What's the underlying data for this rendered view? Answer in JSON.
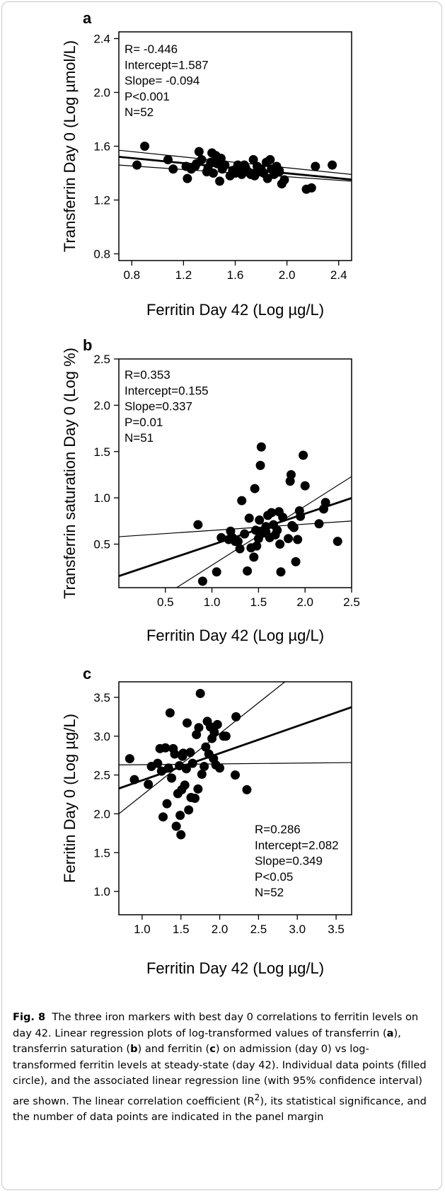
{
  "caption": {
    "label": "Fig. 8",
    "text_1": "The three iron markers with best day 0 correlations to ferritin levels on day 42. Linear regression plots of log-transformed values of transferrin (",
    "ref_a": "a",
    "text_2": "), transferrin saturation (",
    "ref_b": "b",
    "text_3": ") and ferritin (",
    "ref_c": "c",
    "text_4": ") on admission (day 0) vs log-transformed ferritin levels at steady-state (day 42). Individual data points (filled circle), and the associated linear regression line (with 95% confidence interval) are shown. The linear correlation coefficient (R",
    "sup": "2",
    "text_5": "), its statistical significance, and the number of data points are indicated in the panel margin"
  },
  "chart_data": [
    {
      "type": "scatter",
      "panel_label": "a",
      "xlabel": "Ferritin Day 42 (Log µg/L)",
      "ylabel": "Transferrin Day 0 (Log µmol/L)",
      "xlim": [
        0.7,
        2.5
      ],
      "ylim": [
        0.75,
        2.45
      ],
      "xticks": [
        0.8,
        1.2,
        1.6,
        2.0,
        2.4
      ],
      "xtick_labels": [
        "0.8",
        "1.2",
        "1.6",
        "2.0",
        "2.4"
      ],
      "yticks": [
        0.8,
        1.2,
        1.6,
        2.0,
        2.4
      ],
      "ytick_labels": [
        "0.8",
        "1.2",
        "1.6",
        "2.0",
        "2.4"
      ],
      "stats": [
        "R= -0.446",
        "Intercept=1.587",
        "Slope= -0.094",
        "P<0.001",
        "N=52"
      ],
      "stats_position": "top-left",
      "regression": {
        "intercept": 1.587,
        "slope": -0.094
      },
      "ci_lower": [
        [
          0.7,
          1.46
        ],
        [
          2.5,
          1.34
        ]
      ],
      "ci_upper": [
        [
          0.7,
          1.57
        ],
        [
          2.5,
          1.39
        ]
      ],
      "points": [
        [
          0.84,
          1.46
        ],
        [
          0.9,
          1.6
        ],
        [
          1.08,
          1.5
        ],
        [
          1.12,
          1.43
        ],
        [
          1.22,
          1.45
        ],
        [
          1.23,
          1.36
        ],
        [
          1.26,
          1.43
        ],
        [
          1.29,
          1.45
        ],
        [
          1.3,
          1.47
        ],
        [
          1.32,
          1.56
        ],
        [
          1.34,
          1.5
        ],
        [
          1.38,
          1.41
        ],
        [
          1.39,
          1.44
        ],
        [
          1.41,
          1.48
        ],
        [
          1.42,
          1.55
        ],
        [
          1.43,
          1.4
        ],
        [
          1.45,
          1.53
        ],
        [
          1.46,
          1.47
        ],
        [
          1.48,
          1.34
        ],
        [
          1.49,
          1.51
        ],
        [
          1.5,
          1.43
        ],
        [
          1.52,
          1.46
        ],
        [
          1.56,
          1.38
        ],
        [
          1.58,
          1.42
        ],
        [
          1.6,
          1.4
        ],
        [
          1.62,
          1.46
        ],
        [
          1.64,
          1.43
        ],
        [
          1.65,
          1.39
        ],
        [
          1.67,
          1.46
        ],
        [
          1.68,
          1.44
        ],
        [
          1.7,
          1.41
        ],
        [
          1.72,
          1.39
        ],
        [
          1.74,
          1.5
        ],
        [
          1.75,
          1.38
        ],
        [
          1.77,
          1.45
        ],
        [
          1.78,
          1.41
        ],
        [
          1.8,
          1.43
        ],
        [
          1.82,
          1.4
        ],
        [
          1.84,
          1.48
        ],
        [
          1.85,
          1.36
        ],
        [
          1.87,
          1.5
        ],
        [
          1.88,
          1.43
        ],
        [
          1.9,
          1.39
        ],
        [
          1.92,
          1.45
        ],
        [
          1.94,
          1.41
        ],
        [
          1.96,
          1.32
        ],
        [
          1.98,
          1.35
        ],
        [
          2.15,
          1.28
        ],
        [
          2.19,
          1.29
        ],
        [
          2.22,
          1.45
        ],
        [
          2.35,
          1.46
        ],
        [
          1.94,
          1.42
        ]
      ]
    },
    {
      "type": "scatter",
      "panel_label": "b",
      "xlabel": "Ferritin Day 42 (Log µg/L)",
      "ylabel": "Transferrin saturation Day 0 (Log %)",
      "xlim": [
        0.0,
        2.5
      ],
      "ylim": [
        0.03,
        2.5
      ],
      "xticks": [
        0.5,
        1.0,
        1.5,
        2.0,
        2.5
      ],
      "xtick_labels": [
        "0.5",
        "1.0",
        "1.5",
        "2.0",
        "2.5"
      ],
      "yticks": [
        0.5,
        1.0,
        1.5,
        2.0,
        2.5
      ],
      "ytick_labels": [
        "0.5",
        "1.0",
        "1.5",
        "2.0",
        "2.5"
      ],
      "stats": [
        "R=0.353",
        "Intercept=0.155",
        "Slope=0.337",
        "P=0.01",
        "N=51"
      ],
      "stats_position": "top-left",
      "regression": {
        "intercept": 0.155,
        "slope": 0.337
      },
      "ci_lower": [
        [
          0.62,
          0.03
        ],
        [
          2.5,
          1.23
        ]
      ],
      "ci_upper": [
        [
          0.0,
          0.58
        ],
        [
          2.5,
          0.75
        ]
      ],
      "points": [
        [
          0.85,
          0.71
        ],
        [
          0.9,
          0.1
        ],
        [
          1.05,
          0.2
        ],
        [
          1.1,
          0.57
        ],
        [
          1.18,
          0.55
        ],
        [
          1.2,
          0.64
        ],
        [
          1.22,
          0.57
        ],
        [
          1.25,
          0.53
        ],
        [
          1.3,
          0.45
        ],
        [
          1.32,
          0.97
        ],
        [
          1.35,
          0.61
        ],
        [
          1.38,
          0.21
        ],
        [
          1.4,
          0.78
        ],
        [
          1.42,
          0.46
        ],
        [
          1.45,
          0.36
        ],
        [
          1.46,
          1.1
        ],
        [
          1.47,
          0.65
        ],
        [
          1.48,
          0.48
        ],
        [
          1.5,
          0.56
        ],
        [
          1.51,
          0.76
        ],
        [
          1.52,
          1.35
        ],
        [
          1.53,
          1.55
        ],
        [
          1.55,
          0.62
        ],
        [
          1.58,
          0.69
        ],
        [
          1.6,
          0.81
        ],
        [
          1.62,
          0.57
        ],
        [
          1.64,
          0.84
        ],
        [
          1.66,
          0.71
        ],
        [
          1.68,
          0.6
        ],
        [
          1.7,
          0.65
        ],
        [
          1.72,
          0.85
        ],
        [
          1.73,
          0.5
        ],
        [
          1.74,
          0.2
        ],
        [
          1.76,
          0.79
        ],
        [
          1.82,
          0.56
        ],
        [
          1.84,
          1.18
        ],
        [
          1.85,
          1.25
        ],
        [
          1.86,
          0.7
        ],
        [
          1.88,
          0.68
        ],
        [
          1.9,
          0.31
        ],
        [
          1.92,
          0.55
        ],
        [
          1.94,
          0.86
        ],
        [
          1.95,
          0.8
        ],
        [
          1.98,
          1.46
        ],
        [
          2.0,
          1.13
        ],
        [
          2.15,
          0.72
        ],
        [
          2.2,
          0.88
        ],
        [
          2.22,
          0.95
        ],
        [
          2.35,
          0.53
        ],
        [
          1.58,
          0.63
        ],
        [
          1.28,
          0.53
        ]
      ]
    },
    {
      "type": "scatter",
      "panel_label": "c",
      "xlabel": "Ferritin Day 42 (Log µg/L)",
      "ylabel": "Ferritin Day 0 (Log µg/L)",
      "xlim": [
        0.7,
        3.7
      ],
      "ylim": [
        0.7,
        3.7
      ],
      "xticks": [
        1.0,
        1.5,
        2.0,
        2.5,
        3.0,
        3.5
      ],
      "xtick_labels": [
        "1.0",
        "1.5",
        "2.0",
        "2.5",
        "3.0",
        "3.5"
      ],
      "yticks": [
        1.0,
        1.5,
        2.0,
        2.5,
        3.0,
        3.5
      ],
      "ytick_labels": [
        "1.0",
        "1.5",
        "2.0",
        "2.5",
        "3.0",
        "3.5"
      ],
      "stats": [
        "R=0.286",
        "Intercept=2.082",
        "Slope=0.349",
        "P<0.05",
        "N=52"
      ],
      "stats_position": "bottom-right",
      "regression": {
        "intercept": 2.082,
        "slope": 0.349
      },
      "ci_lower": [
        [
          0.7,
          2.63
        ],
        [
          3.7,
          2.66
        ]
      ],
      "ci_upper": [
        [
          0.7,
          2.0
        ],
        [
          2.84,
          3.7
        ]
      ],
      "points": [
        [
          0.84,
          2.71
        ],
        [
          0.9,
          2.44
        ],
        [
          1.08,
          2.38
        ],
        [
          1.12,
          2.61
        ],
        [
          1.2,
          2.65
        ],
        [
          1.23,
          2.84
        ],
        [
          1.25,
          2.55
        ],
        [
          1.27,
          1.96
        ],
        [
          1.3,
          2.85
        ],
        [
          1.32,
          2.13
        ],
        [
          1.34,
          2.59
        ],
        [
          1.36,
          3.3
        ],
        [
          1.38,
          2.46
        ],
        [
          1.4,
          2.84
        ],
        [
          1.42,
          2.77
        ],
        [
          1.44,
          1.84
        ],
        [
          1.46,
          2.26
        ],
        [
          1.48,
          2.62
        ],
        [
          1.49,
          1.98
        ],
        [
          1.5,
          1.73
        ],
        [
          1.51,
          2.31
        ],
        [
          1.52,
          2.74
        ],
        [
          1.53,
          2.78
        ],
        [
          1.55,
          2.37
        ],
        [
          1.57,
          2.58
        ],
        [
          1.58,
          3.17
        ],
        [
          1.6,
          2.05
        ],
        [
          1.62,
          2.79
        ],
        [
          1.63,
          2.21
        ],
        [
          1.65,
          2.65
        ],
        [
          1.68,
          2.2
        ],
        [
          1.7,
          3.02
        ],
        [
          1.72,
          2.32
        ],
        [
          1.73,
          3.11
        ],
        [
          1.75,
          3.55
        ],
        [
          1.77,
          2.51
        ],
        [
          1.8,
          2.61
        ],
        [
          1.82,
          2.86
        ],
        [
          1.84,
          3.19
        ],
        [
          1.86,
          2.77
        ],
        [
          1.88,
          3.12
        ],
        [
          1.9,
          2.97
        ],
        [
          1.92,
          2.71
        ],
        [
          1.93,
          3.05
        ],
        [
          1.95,
          2.63
        ],
        [
          1.97,
          3.15
        ],
        [
          2.0,
          2.59
        ],
        [
          2.05,
          3.0
        ],
        [
          2.08,
          3.0
        ],
        [
          2.2,
          2.5
        ],
        [
          2.21,
          3.25
        ],
        [
          2.35,
          2.31
        ]
      ]
    }
  ]
}
